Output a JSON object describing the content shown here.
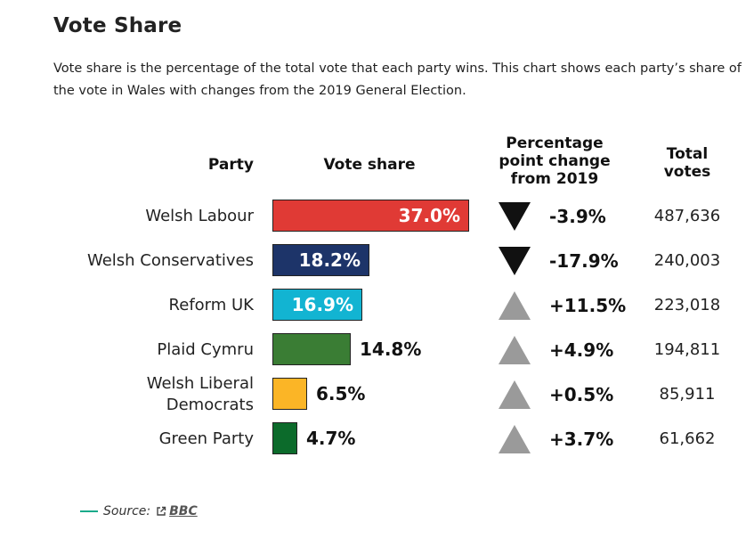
{
  "title": "Vote Share",
  "description": "Vote share is the percentage of the total vote that each party wins. This chart shows each party’s share of the vote in Wales with changes from the 2019 General Election.",
  "headers": {
    "party": "Party",
    "share": "Vote share",
    "change": "Percentage point change from 2019",
    "votes": "Total votes"
  },
  "source": {
    "label": "Source:",
    "link": "BBC",
    "line_color": "#1aaa8a"
  },
  "chart_data": {
    "type": "bar",
    "title": "Vote Share",
    "xlabel": "Vote share",
    "ylabel": "Party",
    "categories": [
      "Welsh Labour",
      "Welsh Conservatives",
      "Reform UK",
      "Plaid Cymru",
      "Welsh Liberal Democrats",
      "Green Party"
    ],
    "xlim": [
      0,
      37
    ],
    "rows": [
      {
        "party": "Welsh Labour",
        "share": 37.0,
        "share_label": "37.0%",
        "change": -3.9,
        "change_label": "-3.9%",
        "votes": "487,636",
        "color": "#e03a35"
      },
      {
        "party": "Welsh Conservatives",
        "share": 18.2,
        "share_label": "18.2%",
        "change": -17.9,
        "change_label": "-17.9%",
        "votes": "240,003",
        "color": "#1d3469"
      },
      {
        "party": "Reform UK",
        "share": 16.9,
        "share_label": "16.9%",
        "change": 11.5,
        "change_label": "+11.5%",
        "votes": "223,018",
        "color": "#12b4d2"
      },
      {
        "party": "Plaid Cymru",
        "share": 14.8,
        "share_label": "14.8%",
        "change": 4.9,
        "change_label": "+4.9%",
        "votes": "194,811",
        "color": "#3a7d34"
      },
      {
        "party": "Welsh Liberal Democrats",
        "party_lines": [
          "Welsh Liberal",
          "Democrats"
        ],
        "share": 6.5,
        "share_label": "6.5%",
        "change": 0.5,
        "change_label": "+0.5%",
        "votes": "85,911",
        "color": "#fbb526"
      },
      {
        "party": "Green Party",
        "share": 4.7,
        "share_label": "4.7%",
        "change": 3.7,
        "change_label": "+3.7%",
        "votes": "61,662",
        "color": "#0c6b2b"
      }
    ]
  }
}
